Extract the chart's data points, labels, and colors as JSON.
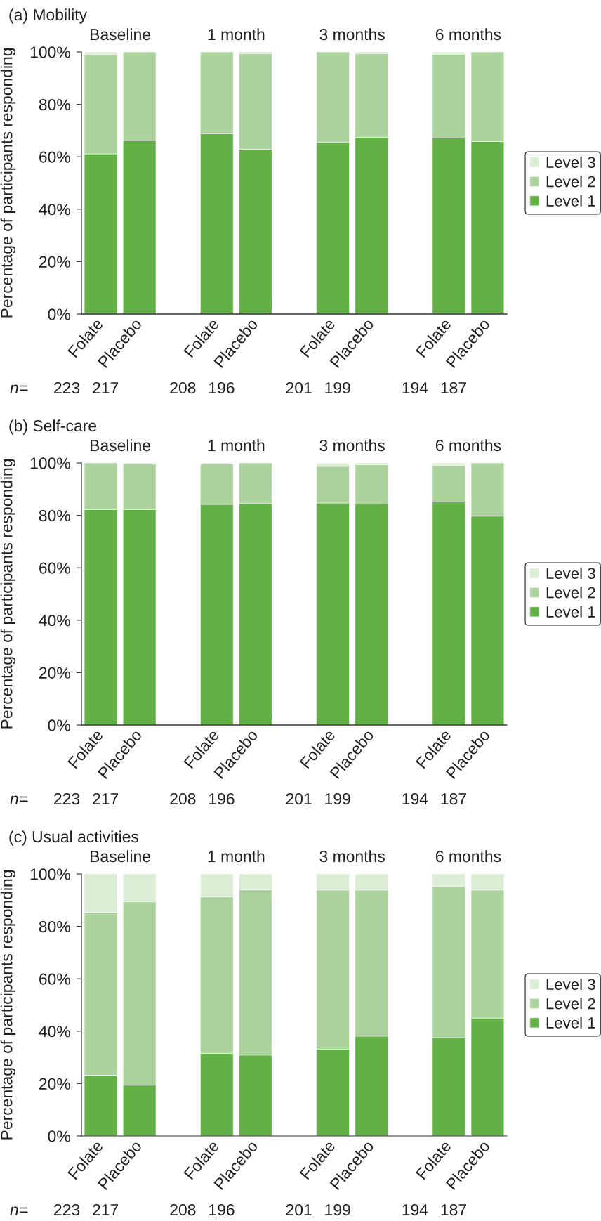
{
  "chart_data": [
    {
      "type": "bar",
      "title": "(a) Mobility",
      "ylabel": "Percentage of participants responding",
      "categories": [
        "Folate",
        "Placebo",
        null,
        "Folate",
        "Placebo",
        null,
        "Folate",
        "Placebo",
        null,
        "Folate",
        "Placebo"
      ],
      "stacked": true,
      "series": [
        {
          "name": "Level 1",
          "color": "#63b146",
          "values": [
            61.1,
            66.1,
            null,
            68.8,
            62.9,
            null,
            65.5,
            67.5,
            null,
            67.2,
            65.8
          ]
        },
        {
          "name": "Level 2",
          "color": "#acd39e",
          "values": [
            37.8,
            33.9,
            null,
            31.2,
            36.5,
            null,
            34.5,
            31.9,
            null,
            31.9,
            34.2
          ]
        },
        {
          "name": "Level 3",
          "color": "#dcedd5",
          "values": [
            1.1,
            null,
            null,
            null,
            0.6,
            null,
            null,
            0.6,
            null,
            0.9,
            null
          ]
        }
      ],
      "ylim": [
        0,
        100
      ],
      "yticks": [
        {
          "value": 0,
          "label": "0%"
        },
        {
          "value": 20,
          "label": "20%"
        },
        {
          "value": 40,
          "label": "40%"
        },
        {
          "value": 60,
          "label": "60%"
        },
        {
          "value": 80,
          "label": "80%"
        },
        {
          "value": 100,
          "label": "100%"
        }
      ],
      "legend": "right",
      "annotations": [
        "Baseline",
        "1 month",
        "3 months",
        "6 months",
        "n=",
        "223",
        "217",
        "208",
        "196",
        "201",
        "199",
        "194",
        "187"
      ]
    },
    {
      "type": "bar",
      "title": "(b) Self-care",
      "ylabel": "Percentage of participants responding",
      "categories": [
        "Folate",
        "Placebo",
        null,
        "Folate",
        "Placebo",
        null,
        "Folate",
        "Placebo",
        null,
        "Folate",
        "Placebo"
      ],
      "stacked": true,
      "series": [
        {
          "name": "Level 1",
          "color": "#63b146",
          "values": [
            82.2,
            82.2,
            null,
            84.2,
            84.5,
            null,
            84.7,
            84.3,
            null,
            85.1,
            79.7
          ]
        },
        {
          "name": "Level 2",
          "color": "#acd39e",
          "values": [
            17.8,
            17.4,
            null,
            15.4,
            15.5,
            null,
            14.0,
            15.0,
            null,
            13.9,
            20.3
          ]
        },
        {
          "name": "Level 3",
          "color": "#dcedd5",
          "values": [
            null,
            0.4,
            null,
            0.4,
            null,
            null,
            1.3,
            0.7,
            null,
            1.0,
            null
          ]
        }
      ],
      "ylim": [
        0,
        100
      ],
      "yticks": [
        {
          "value": 0,
          "label": "0%"
        },
        {
          "value": 20,
          "label": "20%"
        },
        {
          "value": 40,
          "label": "40%"
        },
        {
          "value": 60,
          "label": "60%"
        },
        {
          "value": 80,
          "label": "80%"
        },
        {
          "value": 100,
          "label": "100%"
        }
      ],
      "legend": "right",
      "annotations": [
        "Baseline",
        "1 month",
        "3 months",
        "6 months",
        "n=",
        "223",
        "217",
        "208",
        "196",
        "201",
        "199",
        "194",
        "187"
      ]
    },
    {
      "type": "bar",
      "title": "(c) Usual activities",
      "ylabel": "Percentage of participants responding",
      "categories": [
        "Folate",
        "Placebo",
        null,
        "Folate",
        "Placebo",
        null,
        "Folate",
        "Placebo",
        null,
        "Folate",
        "Placebo"
      ],
      "stacked": true,
      "series": [
        {
          "name": "Level 1",
          "color": "#63b146",
          "values": [
            23.2,
            19.4,
            null,
            31.5,
            30.9,
            null,
            33.1,
            38.1,
            null,
            37.5,
            45.0
          ]
        },
        {
          "name": "Level 2",
          "color": "#acd39e",
          "values": [
            62.2,
            70.0,
            null,
            59.8,
            63.1,
            null,
            60.8,
            55.8,
            null,
            57.7,
            48.9
          ]
        },
        {
          "name": "Level 3",
          "color": "#dcedd5",
          "values": [
            14.6,
            10.6,
            null,
            8.7,
            6.0,
            null,
            6.1,
            6.1,
            null,
            4.8,
            6.1
          ]
        }
      ],
      "ylim": [
        0,
        100
      ],
      "yticks": [
        {
          "value": 0,
          "label": "0%"
        },
        {
          "value": 20,
          "label": "20%"
        },
        {
          "value": 40,
          "label": "40%"
        },
        {
          "value": 60,
          "label": "60%"
        },
        {
          "value": 80,
          "label": "80%"
        },
        {
          "value": 100,
          "label": "100%"
        }
      ],
      "legend": "right",
      "annotations": [
        "Baseline",
        "1 month",
        "3 months",
        "6 months",
        "n=",
        "223",
        "217",
        "208",
        "196",
        "201",
        "199",
        "194",
        "187"
      ]
    }
  ]
}
